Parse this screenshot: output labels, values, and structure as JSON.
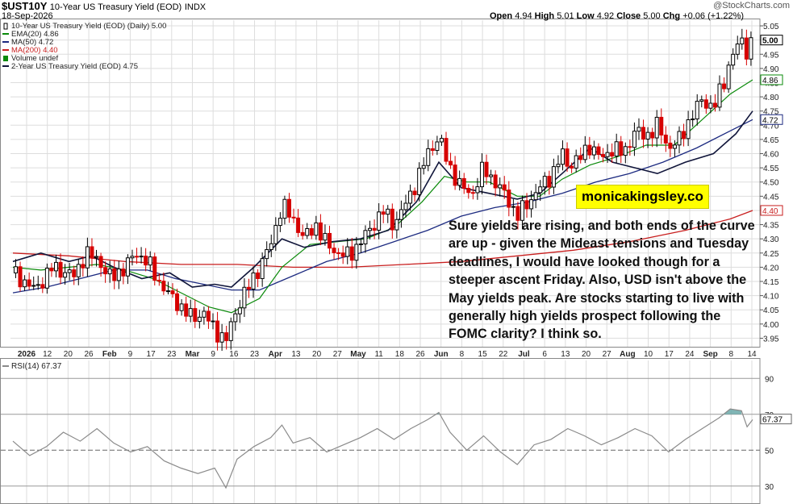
{
  "header": {
    "symbol": "$UST10Y",
    "description": "10-Year US Treasury Yield (EOD)",
    "exchange": "INDX",
    "date": "18-Sep-2026",
    "source": "@StockCharts.com",
    "ohlc": {
      "open_label": "Open",
      "open": "4.94",
      "high_label": "High",
      "high": "5.01",
      "low_label": "Low",
      "low": "4.92",
      "close_label": "Close",
      "close": "5.00",
      "chg_label": "Chg",
      "chg": "+0.06 (+1.22%)"
    }
  },
  "watermark": "monicakingsley.co",
  "annotation": "Sure yields are rising, and both ends of the curve are up - given the Mideast tensions and Tuesday deadlines, I would have looked though for a steeper ascent Friday. Also, USD isn't above the May yields peak. Are stocks starting to live with generally high yields prospect following the FOMC clarity? I think so.",
  "colors": {
    "up_candle": "#000000",
    "down_candle": "#d60000",
    "ema20": "#0a8a0a",
    "ma50": "#1c2a80",
    "ma200": "#c81e1e",
    "two_year": "#10153a",
    "rsi": "#8a8a8a",
    "rsi_overbought_fill": "#6aa8a8",
    "grid": "#dddddd"
  },
  "chart_data": [
    {
      "type": "candlestick",
      "title": "10-Year US Treasury Yield (EOD) (Daily) 5.00",
      "legend": [
        {
          "label": "10-Year US Treasury Yield (EOD) (Daily) 5.00",
          "color": "#000000"
        },
        {
          "label": "EMA(20) 4.86",
          "color": "#0a8a0a"
        },
        {
          "label": "MA(50) 4.72",
          "color": "#1c2a80"
        },
        {
          "label": "MA(200) 4.40",
          "color": "#c81e1e"
        },
        {
          "label": "Volume undef",
          "color": "#0a8a0a"
        },
        {
          "label": "2-Year US Treasury Yield (EOD) 4.75",
          "color": "#10153a"
        }
      ],
      "y_ticks": [
        "5.05",
        "5.00",
        "4.95",
        "4.90",
        "4.85",
        "4.80",
        "4.75",
        "4.70",
        "4.65",
        "4.60",
        "4.55",
        "4.50",
        "4.45",
        "4.40",
        "4.35",
        "4.30",
        "4.25",
        "4.20",
        "4.15",
        "4.10",
        "4.05",
        "4.00",
        "3.95"
      ],
      "ylim": [
        3.92,
        5.07
      ],
      "x_ticks": [
        {
          "label": "2026",
          "bold": true
        },
        {
          "label": "12"
        },
        {
          "label": "20"
        },
        {
          "label": "26"
        },
        {
          "label": "Feb",
          "bold": true
        },
        {
          "label": "9"
        },
        {
          "label": "17"
        },
        {
          "label": "23"
        },
        {
          "label": "Mar",
          "bold": true
        },
        {
          "label": "9"
        },
        {
          "label": "16"
        },
        {
          "label": "23"
        },
        {
          "label": "Apr",
          "bold": true
        },
        {
          "label": "13"
        },
        {
          "label": "20"
        },
        {
          "label": "27"
        },
        {
          "label": "May",
          "bold": true
        },
        {
          "label": "11"
        },
        {
          "label": "18"
        },
        {
          "label": "26"
        },
        {
          "label": "Jun",
          "bold": true
        },
        {
          "label": "8"
        },
        {
          "label": "15"
        },
        {
          "label": "22"
        },
        {
          "label": "Jul",
          "bold": true
        },
        {
          "label": "6"
        },
        {
          "label": "13"
        },
        {
          "label": "20"
        },
        {
          "label": "27"
        },
        {
          "label": "Aug",
          "bold": true
        },
        {
          "label": "10"
        },
        {
          "label": "17"
        },
        {
          "label": "24"
        },
        {
          "label": "Sep",
          "bold": true
        },
        {
          "label": "8"
        },
        {
          "label": "14"
        }
      ],
      "price_path": [
        [
          0,
          4.18
        ],
        [
          8,
          4.12
        ],
        [
          14,
          4.2
        ],
        [
          22,
          4.17
        ],
        [
          26,
          4.25
        ],
        [
          30,
          4.23
        ],
        [
          35,
          4.16
        ],
        [
          40,
          4.2
        ],
        [
          44,
          4.25
        ],
        [
          48,
          4.22
        ],
        [
          52,
          4.15
        ],
        [
          56,
          4.1
        ],
        [
          60,
          4.06
        ],
        [
          64,
          4.02
        ],
        [
          68,
          4.04
        ],
        [
          72,
          3.98
        ],
        [
          76,
          3.94
        ],
        [
          80,
          4.06
        ],
        [
          84,
          4.13
        ],
        [
          88,
          4.2
        ],
        [
          92,
          4.28
        ],
        [
          96,
          4.42
        ],
        [
          100,
          4.37
        ],
        [
          104,
          4.3
        ],
        [
          108,
          4.35
        ],
        [
          112,
          4.28
        ],
        [
          116,
          4.25
        ],
        [
          120,
          4.24
        ],
        [
          124,
          4.29
        ],
        [
          128,
          4.34
        ],
        [
          132,
          4.4
        ],
        [
          136,
          4.35
        ],
        [
          140,
          4.42
        ],
        [
          144,
          4.5
        ],
        [
          148,
          4.6
        ],
        [
          152,
          4.66
        ],
        [
          154,
          4.6
        ],
        [
          156,
          4.55
        ],
        [
          160,
          4.48
        ],
        [
          164,
          4.46
        ],
        [
          168,
          4.55
        ],
        [
          172,
          4.5
        ],
        [
          176,
          4.45
        ],
        [
          180,
          4.38
        ],
        [
          184,
          4.43
        ],
        [
          188,
          4.48
        ],
        [
          192,
          4.52
        ],
        [
          196,
          4.6
        ],
        [
          198,
          4.56
        ],
        [
          202,
          4.58
        ],
        [
          206,
          4.63
        ],
        [
          210,
          4.58
        ],
        [
          214,
          4.62
        ],
        [
          218,
          4.6
        ],
        [
          222,
          4.68
        ],
        [
          226,
          4.66
        ],
        [
          230,
          4.7
        ],
        [
          234,
          4.62
        ],
        [
          238,
          4.65
        ],
        [
          242,
          4.73
        ],
        [
          246,
          4.79
        ],
        [
          250,
          4.76
        ],
        [
          254,
          4.86
        ],
        [
          256,
          4.93
        ],
        [
          258,
          4.97
        ],
        [
          260,
          5.0
        ],
        [
          262,
          4.96
        ],
        [
          264,
          5.0
        ]
      ],
      "ema20_path": [
        [
          0,
          4.2
        ],
        [
          10,
          4.19
        ],
        [
          20,
          4.2
        ],
        [
          30,
          4.21
        ],
        [
          40,
          4.19
        ],
        [
          50,
          4.16
        ],
        [
          60,
          4.11
        ],
        [
          70,
          4.06
        ],
        [
          78,
          4.04
        ],
        [
          88,
          4.09
        ],
        [
          96,
          4.2
        ],
        [
          106,
          4.28
        ],
        [
          116,
          4.29
        ],
        [
          126,
          4.3
        ],
        [
          136,
          4.34
        ],
        [
          146,
          4.43
        ],
        [
          154,
          4.52
        ],
        [
          162,
          4.5
        ],
        [
          170,
          4.5
        ],
        [
          180,
          4.45
        ],
        [
          188,
          4.45
        ],
        [
          196,
          4.51
        ],
        [
          206,
          4.56
        ],
        [
          216,
          4.59
        ],
        [
          226,
          4.63
        ],
        [
          236,
          4.63
        ],
        [
          246,
          4.72
        ],
        [
          256,
          4.81
        ],
        [
          264,
          4.86
        ]
      ],
      "ma50_path": [
        [
          0,
          4.11
        ],
        [
          12,
          4.13
        ],
        [
          24,
          4.16
        ],
        [
          36,
          4.19
        ],
        [
          48,
          4.19
        ],
        [
          58,
          4.16
        ],
        [
          68,
          4.14
        ],
        [
          78,
          4.12
        ],
        [
          88,
          4.12
        ],
        [
          100,
          4.17
        ],
        [
          112,
          4.22
        ],
        [
          124,
          4.25
        ],
        [
          136,
          4.29
        ],
        [
          148,
          4.33
        ],
        [
          160,
          4.38
        ],
        [
          172,
          4.41
        ],
        [
          184,
          4.43
        ],
        [
          196,
          4.46
        ],
        [
          208,
          4.5
        ],
        [
          220,
          4.53
        ],
        [
          232,
          4.57
        ],
        [
          244,
          4.62
        ],
        [
          256,
          4.68
        ],
        [
          264,
          4.72
        ]
      ],
      "ma200_path": [
        [
          0,
          4.25
        ],
        [
          20,
          4.24
        ],
        [
          40,
          4.22
        ],
        [
          60,
          4.21
        ],
        [
          80,
          4.21
        ],
        [
          100,
          4.2
        ],
        [
          120,
          4.2
        ],
        [
          140,
          4.21
        ],
        [
          160,
          4.22
        ],
        [
          180,
          4.24
        ],
        [
          200,
          4.26
        ],
        [
          220,
          4.29
        ],
        [
          240,
          4.33
        ],
        [
          256,
          4.37
        ],
        [
          264,
          4.4
        ]
      ],
      "two_year_path": [
        [
          0,
          4.22
        ],
        [
          10,
          4.25
        ],
        [
          20,
          4.22
        ],
        [
          28,
          4.24
        ],
        [
          36,
          4.2
        ],
        [
          46,
          4.16
        ],
        [
          56,
          4.18
        ],
        [
          64,
          4.13
        ],
        [
          72,
          4.14
        ],
        [
          78,
          4.13
        ],
        [
          86,
          4.2
        ],
        [
          96,
          4.3
        ],
        [
          104,
          4.27
        ],
        [
          114,
          4.29
        ],
        [
          124,
          4.3
        ],
        [
          134,
          4.33
        ],
        [
          144,
          4.43
        ],
        [
          152,
          4.57
        ],
        [
          160,
          4.48
        ],
        [
          170,
          4.46
        ],
        [
          180,
          4.44
        ],
        [
          188,
          4.46
        ],
        [
          196,
          4.53
        ],
        [
          206,
          4.62
        ],
        [
          214,
          4.57
        ],
        [
          222,
          4.55
        ],
        [
          230,
          4.53
        ],
        [
          240,
          4.57
        ],
        [
          250,
          4.6
        ],
        [
          258,
          4.67
        ],
        [
          264,
          4.75
        ]
      ],
      "last_value_labels": [
        "5.00",
        "4.86",
        "4.72",
        "4.40"
      ]
    },
    {
      "type": "line",
      "title": "RSI(14) 67.37",
      "y_ticks": [
        "90",
        "70",
        "50",
        "30"
      ],
      "ylim": [
        20,
        100
      ],
      "overbought": 70,
      "oversold": 30,
      "last_value": "67.37",
      "rsi_path": [
        [
          0,
          55
        ],
        [
          6,
          47
        ],
        [
          12,
          52
        ],
        [
          18,
          60
        ],
        [
          24,
          55
        ],
        [
          30,
          62
        ],
        [
          36,
          54
        ],
        [
          42,
          49
        ],
        [
          48,
          52
        ],
        [
          54,
          44
        ],
        [
          60,
          40
        ],
        [
          66,
          37
        ],
        [
          72,
          40
        ],
        [
          76,
          29
        ],
        [
          80,
          45
        ],
        [
          86,
          52
        ],
        [
          92,
          57
        ],
        [
          96,
          64
        ],
        [
          100,
          54
        ],
        [
          106,
          57
        ],
        [
          112,
          49
        ],
        [
          118,
          53
        ],
        [
          124,
          57
        ],
        [
          130,
          62
        ],
        [
          136,
          56
        ],
        [
          142,
          62
        ],
        [
          148,
          67
        ],
        [
          152,
          71
        ],
        [
          156,
          60
        ],
        [
          162,
          50
        ],
        [
          168,
          58
        ],
        [
          174,
          49
        ],
        [
          180,
          42
        ],
        [
          186,
          53
        ],
        [
          192,
          56
        ],
        [
          198,
          62
        ],
        [
          204,
          58
        ],
        [
          210,
          53
        ],
        [
          216,
          57
        ],
        [
          222,
          62
        ],
        [
          228,
          58
        ],
        [
          234,
          49
        ],
        [
          240,
          56
        ],
        [
          246,
          62
        ],
        [
          252,
          68
        ],
        [
          256,
          73
        ],
        [
          260,
          72
        ],
        [
          262,
          63
        ],
        [
          264,
          67
        ]
      ]
    }
  ]
}
